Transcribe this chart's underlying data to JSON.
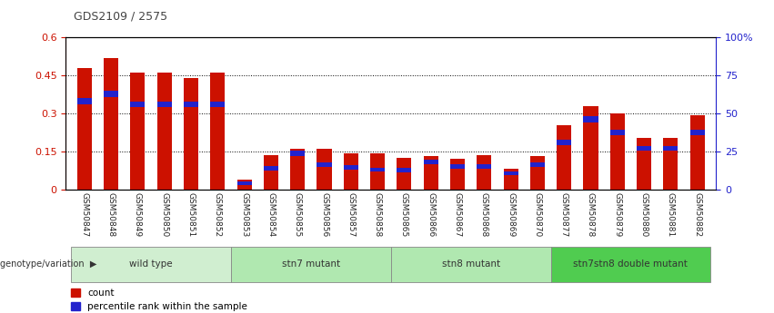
{
  "title": "GDS2109 / 2575",
  "samples": [
    "GSM50847",
    "GSM50848",
    "GSM50849",
    "GSM50850",
    "GSM50851",
    "GSM50852",
    "GSM50853",
    "GSM50854",
    "GSM50855",
    "GSM50856",
    "GSM50857",
    "GSM50858",
    "GSM50865",
    "GSM50866",
    "GSM50867",
    "GSM50868",
    "GSM50869",
    "GSM50870",
    "GSM50877",
    "GSM50878",
    "GSM50879",
    "GSM50880",
    "GSM50881",
    "GSM50882"
  ],
  "count_values": [
    0.48,
    0.52,
    0.46,
    0.46,
    0.44,
    0.46,
    0.04,
    0.135,
    0.162,
    0.162,
    0.142,
    0.142,
    0.126,
    0.132,
    0.122,
    0.136,
    0.082,
    0.132,
    0.252,
    0.328,
    0.302,
    0.202,
    0.202,
    0.292
  ],
  "percentile_heights": [
    0.025,
    0.025,
    0.022,
    0.022,
    0.022,
    0.022,
    0.012,
    0.018,
    0.022,
    0.018,
    0.018,
    0.016,
    0.016,
    0.018,
    0.016,
    0.016,
    0.014,
    0.018,
    0.02,
    0.025,
    0.022,
    0.02,
    0.02,
    0.022
  ],
  "percentile_bottoms": [
    0.335,
    0.365,
    0.325,
    0.325,
    0.325,
    0.325,
    0.018,
    0.075,
    0.13,
    0.088,
    0.078,
    0.07,
    0.068,
    0.098,
    0.083,
    0.083,
    0.058,
    0.088,
    0.175,
    0.265,
    0.215,
    0.152,
    0.152,
    0.215
  ],
  "groups": [
    {
      "label": "wild type",
      "indices": [
        0,
        1,
        2,
        3,
        4,
        5
      ],
      "color": "#d0eed0"
    },
    {
      "label": "stn7 mutant",
      "indices": [
        6,
        7,
        8,
        9,
        10,
        11
      ],
      "color": "#b0e8b0"
    },
    {
      "label": "stn8 mutant",
      "indices": [
        12,
        13,
        14,
        15,
        16,
        17
      ],
      "color": "#b0e8b0"
    },
    {
      "label": "stn7stn8 double mutant",
      "indices": [
        18,
        19,
        20,
        21,
        22,
        23
      ],
      "color": "#50cc50"
    }
  ],
  "bar_color": "#cc1100",
  "percentile_color": "#2222cc",
  "bar_width": 0.55,
  "ylim_left": [
    0,
    0.6
  ],
  "ylim_right": [
    0,
    100
  ],
  "yticks_left": [
    0,
    0.15,
    0.3,
    0.45,
    0.6
  ],
  "yticks_left_labels": [
    "0",
    "0.15",
    "0.3",
    "0.45",
    "0.6"
  ],
  "yticks_right": [
    0,
    25,
    50,
    75,
    100
  ],
  "yticks_right_labels": [
    "0",
    "25",
    "50",
    "75",
    "100%"
  ],
  "ylabel_left_color": "#cc1100",
  "ylabel_right_color": "#2222cc",
  "legend_count": "count",
  "legend_percentile": "percentile rank within the sample"
}
